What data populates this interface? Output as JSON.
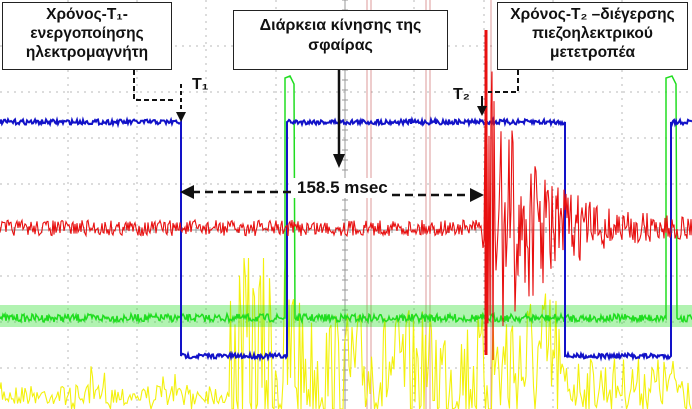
{
  "labels": {
    "t1_box": [
      "Χρόνος-T₁-",
      "ενεργοποίησης",
      "ηλεκτρομαγνήτη"
    ],
    "duration_box": [
      "Διάρκεια κίνησης της",
      "σφαίρας"
    ],
    "t2_box": [
      "Χρόνος-T₂ –διέγερσης",
      "πιεζοηλεκτρικού",
      "μετετροπέα"
    ],
    "t1_marker": "T₁",
    "t2_marker": "T₂",
    "measurement": "158.5 msec"
  },
  "colors": {
    "blue_trace": "#1212c8",
    "red_trace": "#e81010",
    "green_trace": "#20dd20",
    "yellow_trace": "#f2f000",
    "grid": "#b8b8b8",
    "cursor": "#c44444"
  },
  "chart_data": {
    "type": "line",
    "title": "",
    "xlabel": "",
    "ylabel": "",
    "grid": true,
    "units": "msec",
    "series": [
      {
        "name": "",
        "color": "blue",
        "levels": [
          "high",
          "low",
          "high",
          "low"
        ],
        "transition_times": [
          0,
          45,
          158.5
        ]
      },
      {
        "name": "",
        "color": "red",
        "burst_time": 158.5
      },
      {
        "name": "",
        "color": "green",
        "pulse_times": [
          45,
          198
        ]
      },
      {
        "name": "",
        "color": "yellow"
      }
    ],
    "annotations": [
      {
        "text": "T₁",
        "time": 0
      },
      {
        "text": "T₂",
        "time": 158.5
      },
      {
        "text": "158.5 msec",
        "from": 0,
        "to": 158.5
      }
    ]
  }
}
